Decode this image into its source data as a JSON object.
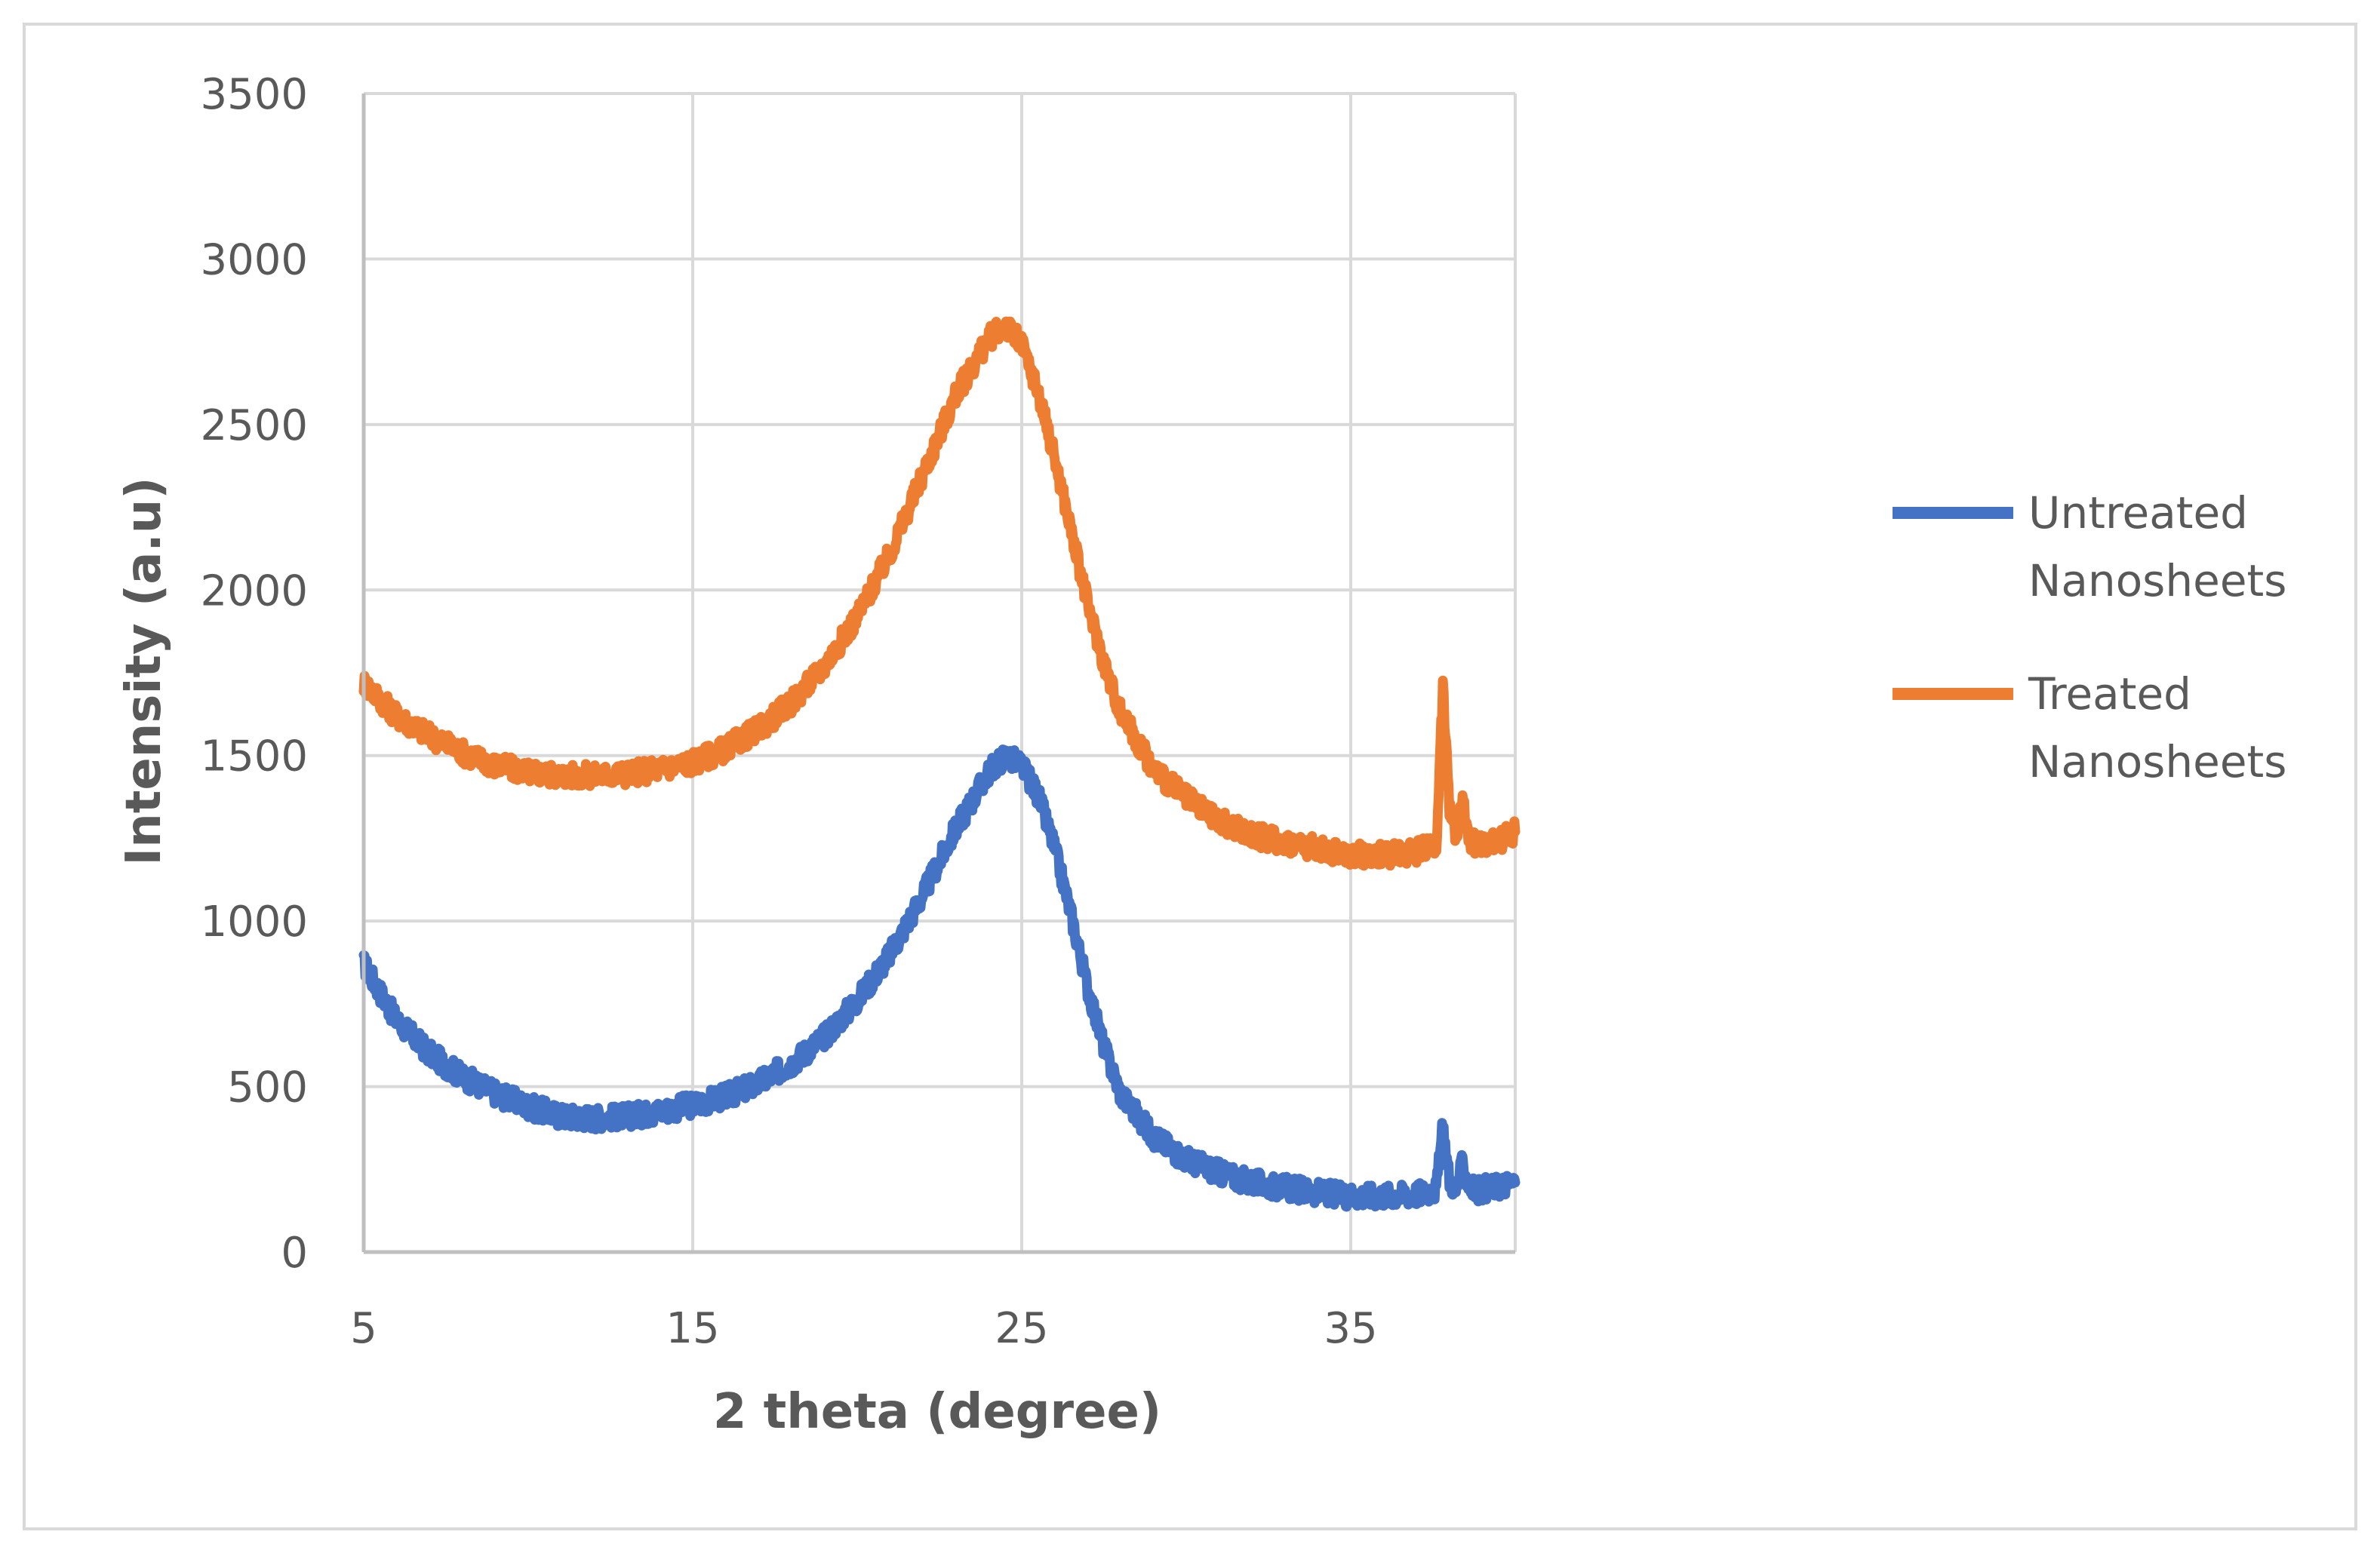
{
  "chart_data": {
    "type": "line",
    "xlabel": "2 theta (degree)",
    "ylabel": "Intensity (a.u)",
    "xlim": [
      5,
      40
    ],
    "ylim": [
      0,
      3500
    ],
    "x_ticks": [
      5,
      15,
      25,
      35
    ],
    "y_ticks": [
      0,
      500,
      1000,
      1500,
      2000,
      2500,
      3000,
      3500
    ],
    "grid": true,
    "legend_position": "right",
    "series": [
      {
        "name": "Untreated Nanosheets",
        "legend_lines": [
          "Untreated",
          "Nanosheets"
        ],
        "color": "#4472C4",
        "x": [
          5,
          6,
          7,
          8,
          9,
          10,
          11,
          12,
          13,
          14,
          15,
          16,
          17,
          18,
          19,
          20,
          21,
          22,
          23,
          24,
          24.5,
          25,
          25.5,
          26,
          26.5,
          27,
          27.5,
          28,
          29,
          30,
          31,
          32,
          33,
          34,
          35,
          36,
          37,
          37.6,
          37.8,
          38,
          38.2,
          38.4,
          38.6,
          38.8,
          39,
          39.5,
          40
        ],
        "y": [
          870,
          700,
          600,
          530,
          480,
          440,
          410,
          405,
          410,
          425,
          445,
          470,
          510,
          570,
          650,
          760,
          900,
          1080,
          1280,
          1450,
          1500,
          1470,
          1380,
          1220,
          1020,
          800,
          620,
          480,
          350,
          280,
          240,
          210,
          195,
          180,
          170,
          170,
          175,
          190,
          380,
          220,
          185,
          270,
          200,
          185,
          190,
          200,
          210
        ]
      },
      {
        "name": "Treated Nanosheets",
        "legend_lines": [
          "Treated",
          "Nanosheets"
        ],
        "color": "#ED7D31",
        "x": [
          5,
          6,
          7,
          8,
          9,
          10,
          11,
          12,
          13,
          14,
          15,
          16,
          17,
          18,
          19,
          20,
          21,
          22,
          23,
          24,
          24.5,
          25,
          25.5,
          26,
          26.5,
          27,
          27.5,
          28,
          29,
          30,
          31,
          32,
          33,
          34,
          35,
          36,
          37,
          37.6,
          37.8,
          38,
          38.2,
          38.4,
          38.6,
          38.8,
          39,
          39.5,
          40
        ],
        "y": [
          1720,
          1620,
          1560,
          1510,
          1470,
          1450,
          1440,
          1440,
          1445,
          1460,
          1480,
          1520,
          1580,
          1660,
          1770,
          1920,
          2110,
          2350,
          2590,
          2760,
          2800,
          2740,
          2600,
          2400,
          2180,
          1960,
          1780,
          1630,
          1460,
          1370,
          1300,
          1260,
          1240,
          1220,
          1200,
          1200,
          1210,
          1230,
          1700,
          1350,
          1260,
          1370,
          1250,
          1230,
          1230,
          1240,
          1270
        ]
      }
    ]
  }
}
